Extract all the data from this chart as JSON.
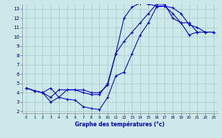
{
  "xlabel": "Graphe des températures (°c)",
  "bg_color": "#cce8e8",
  "grid_color": "#aacccc",
  "line_color": "#0000cc",
  "xlim": [
    -0.5,
    23.5
  ],
  "ylim": [
    1.8,
    13.5
  ],
  "xticks": [
    0,
    1,
    2,
    3,
    4,
    5,
    6,
    7,
    8,
    9,
    10,
    11,
    12,
    13,
    14,
    15,
    16,
    17,
    18,
    19,
    20,
    21,
    22,
    23
  ],
  "yticks": [
    2,
    3,
    4,
    5,
    6,
    7,
    8,
    9,
    10,
    11,
    12,
    13
  ],
  "line1_x": [
    0,
    1,
    2,
    3,
    4,
    5,
    6,
    7,
    8,
    9,
    10,
    11,
    12,
    13,
    14,
    15,
    16,
    17,
    18,
    19,
    20,
    21,
    22,
    23
  ],
  "line1_y": [
    4.5,
    4.2,
    4.0,
    3.0,
    3.5,
    3.3,
    3.2,
    2.5,
    2.3,
    2.2,
    3.5,
    5.8,
    6.2,
    8.2,
    10.2,
    11.5,
    13.2,
    13.3,
    13.1,
    12.5,
    11.3,
    11.0,
    10.5,
    10.5
  ],
  "line2_x": [
    0,
    1,
    2,
    3,
    4,
    5,
    6,
    7,
    8,
    9,
    10,
    11,
    12,
    13,
    14,
    15,
    16,
    17,
    18,
    19,
    20,
    21,
    22,
    23
  ],
  "line2_y": [
    4.5,
    4.2,
    4.0,
    4.5,
    3.5,
    4.3,
    4.3,
    4.3,
    4.0,
    4.0,
    4.8,
    8.2,
    12.0,
    13.2,
    13.6,
    13.5,
    13.3,
    13.3,
    12.5,
    11.5,
    10.2,
    10.5,
    10.5,
    10.5
  ],
  "line3_x": [
    0,
    1,
    2,
    3,
    4,
    5,
    6,
    7,
    8,
    9,
    10,
    11,
    12,
    13,
    14,
    15,
    16,
    17,
    18,
    19,
    20,
    21,
    22,
    23
  ],
  "line3_y": [
    4.5,
    4.2,
    4.0,
    3.5,
    4.3,
    4.3,
    4.3,
    4.0,
    3.8,
    3.8,
    5.0,
    8.2,
    9.5,
    10.5,
    11.5,
    12.5,
    13.5,
    13.5,
    12.0,
    11.5,
    11.5,
    10.5,
    10.5,
    10.5
  ]
}
